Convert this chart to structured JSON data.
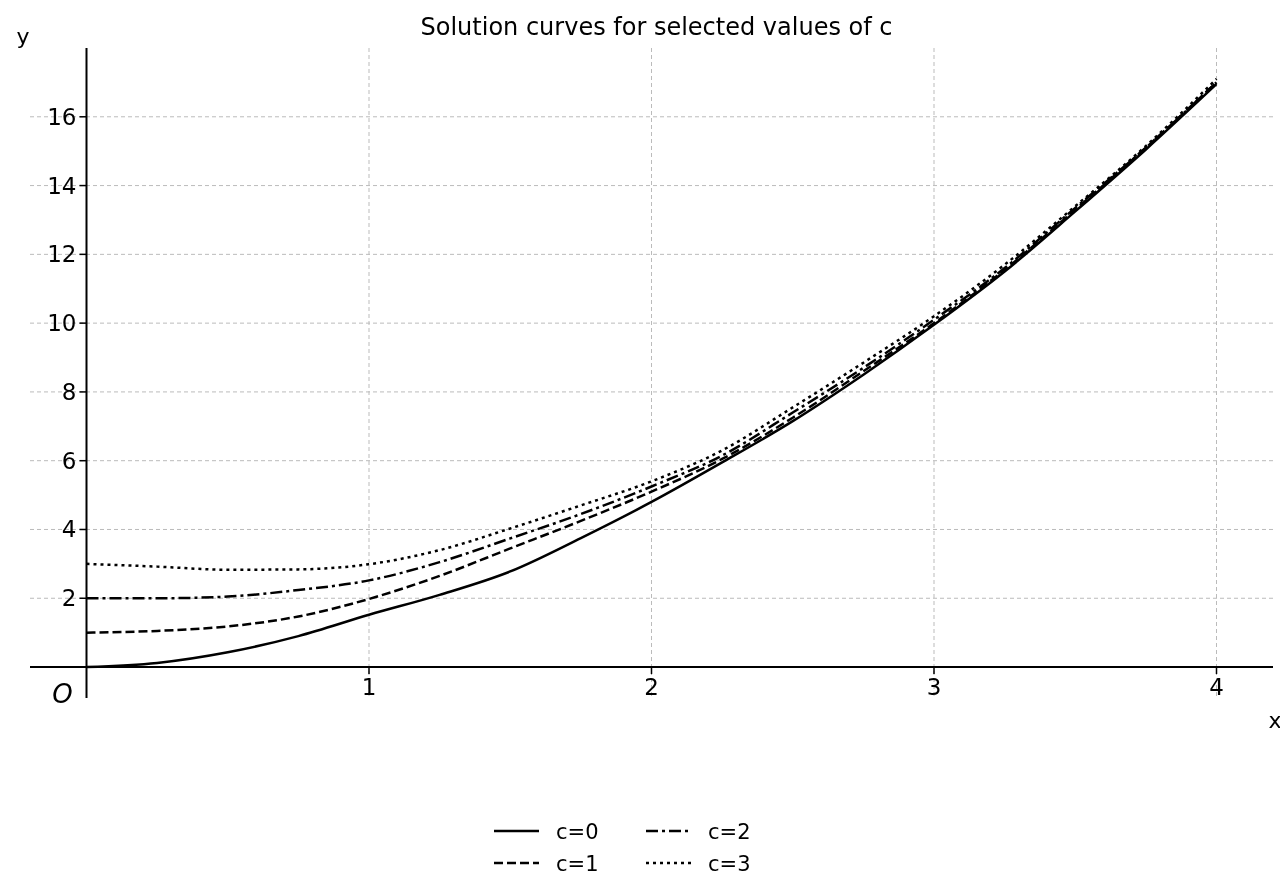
{
  "chart_data": {
    "type": "line",
    "title": "Solution curves for selected values of c",
    "xlabel": "x",
    "ylabel": "y",
    "annotations": [
      "O"
    ],
    "x": [
      0,
      0.25,
      0.5,
      0.75,
      1,
      1.25,
      1.5,
      1.75,
      2,
      2.25,
      2.5,
      2.75,
      3,
      3.25,
      3.5,
      3.75,
      4
    ],
    "series": [
      {
        "name": "c=0",
        "color": "#000000",
        "line_style": "solid",
        "values": [
          0,
          0.12,
          0.43,
          0.9,
          1.52,
          2.1,
          2.78,
          3.75,
          4.8,
          5.95,
          7.15,
          8.5,
          9.95,
          11.5,
          13.25,
          15.05,
          16.95
        ]
      },
      {
        "name": "c=1",
        "color": "#000000",
        "line_style": "dashed",
        "values": [
          1,
          1.05,
          1.18,
          1.47,
          1.98,
          2.65,
          3.45,
          4.25,
          5.1,
          6.05,
          7.25,
          8.6,
          10.0,
          11.55,
          13.3,
          15.1,
          17.0
        ]
      },
      {
        "name": "c=2",
        "color": "#000000",
        "line_style": "dashdot",
        "values": [
          2,
          2.0,
          2.05,
          2.24,
          2.52,
          3.05,
          3.74,
          4.45,
          5.25,
          6.15,
          7.4,
          8.7,
          10.1,
          11.6,
          13.35,
          15.1,
          17.0
        ]
      },
      {
        "name": "c=3",
        "color": "#000000",
        "line_style": "dotted",
        "values": [
          3,
          2.92,
          2.83,
          2.84,
          2.99,
          3.4,
          4.03,
          4.7,
          5.4,
          6.3,
          7.55,
          8.85,
          10.2,
          11.7,
          13.4,
          15.15,
          17.1
        ]
      }
    ],
    "xlim": [
      -0.2,
      4.2
    ],
    "ylim": [
      -0.9,
      18
    ],
    "xticks": [
      1,
      2,
      3,
      4
    ],
    "yticks": [
      2,
      4,
      6,
      8,
      10,
      12,
      14,
      16
    ],
    "grid": true,
    "legend": "bottom"
  }
}
